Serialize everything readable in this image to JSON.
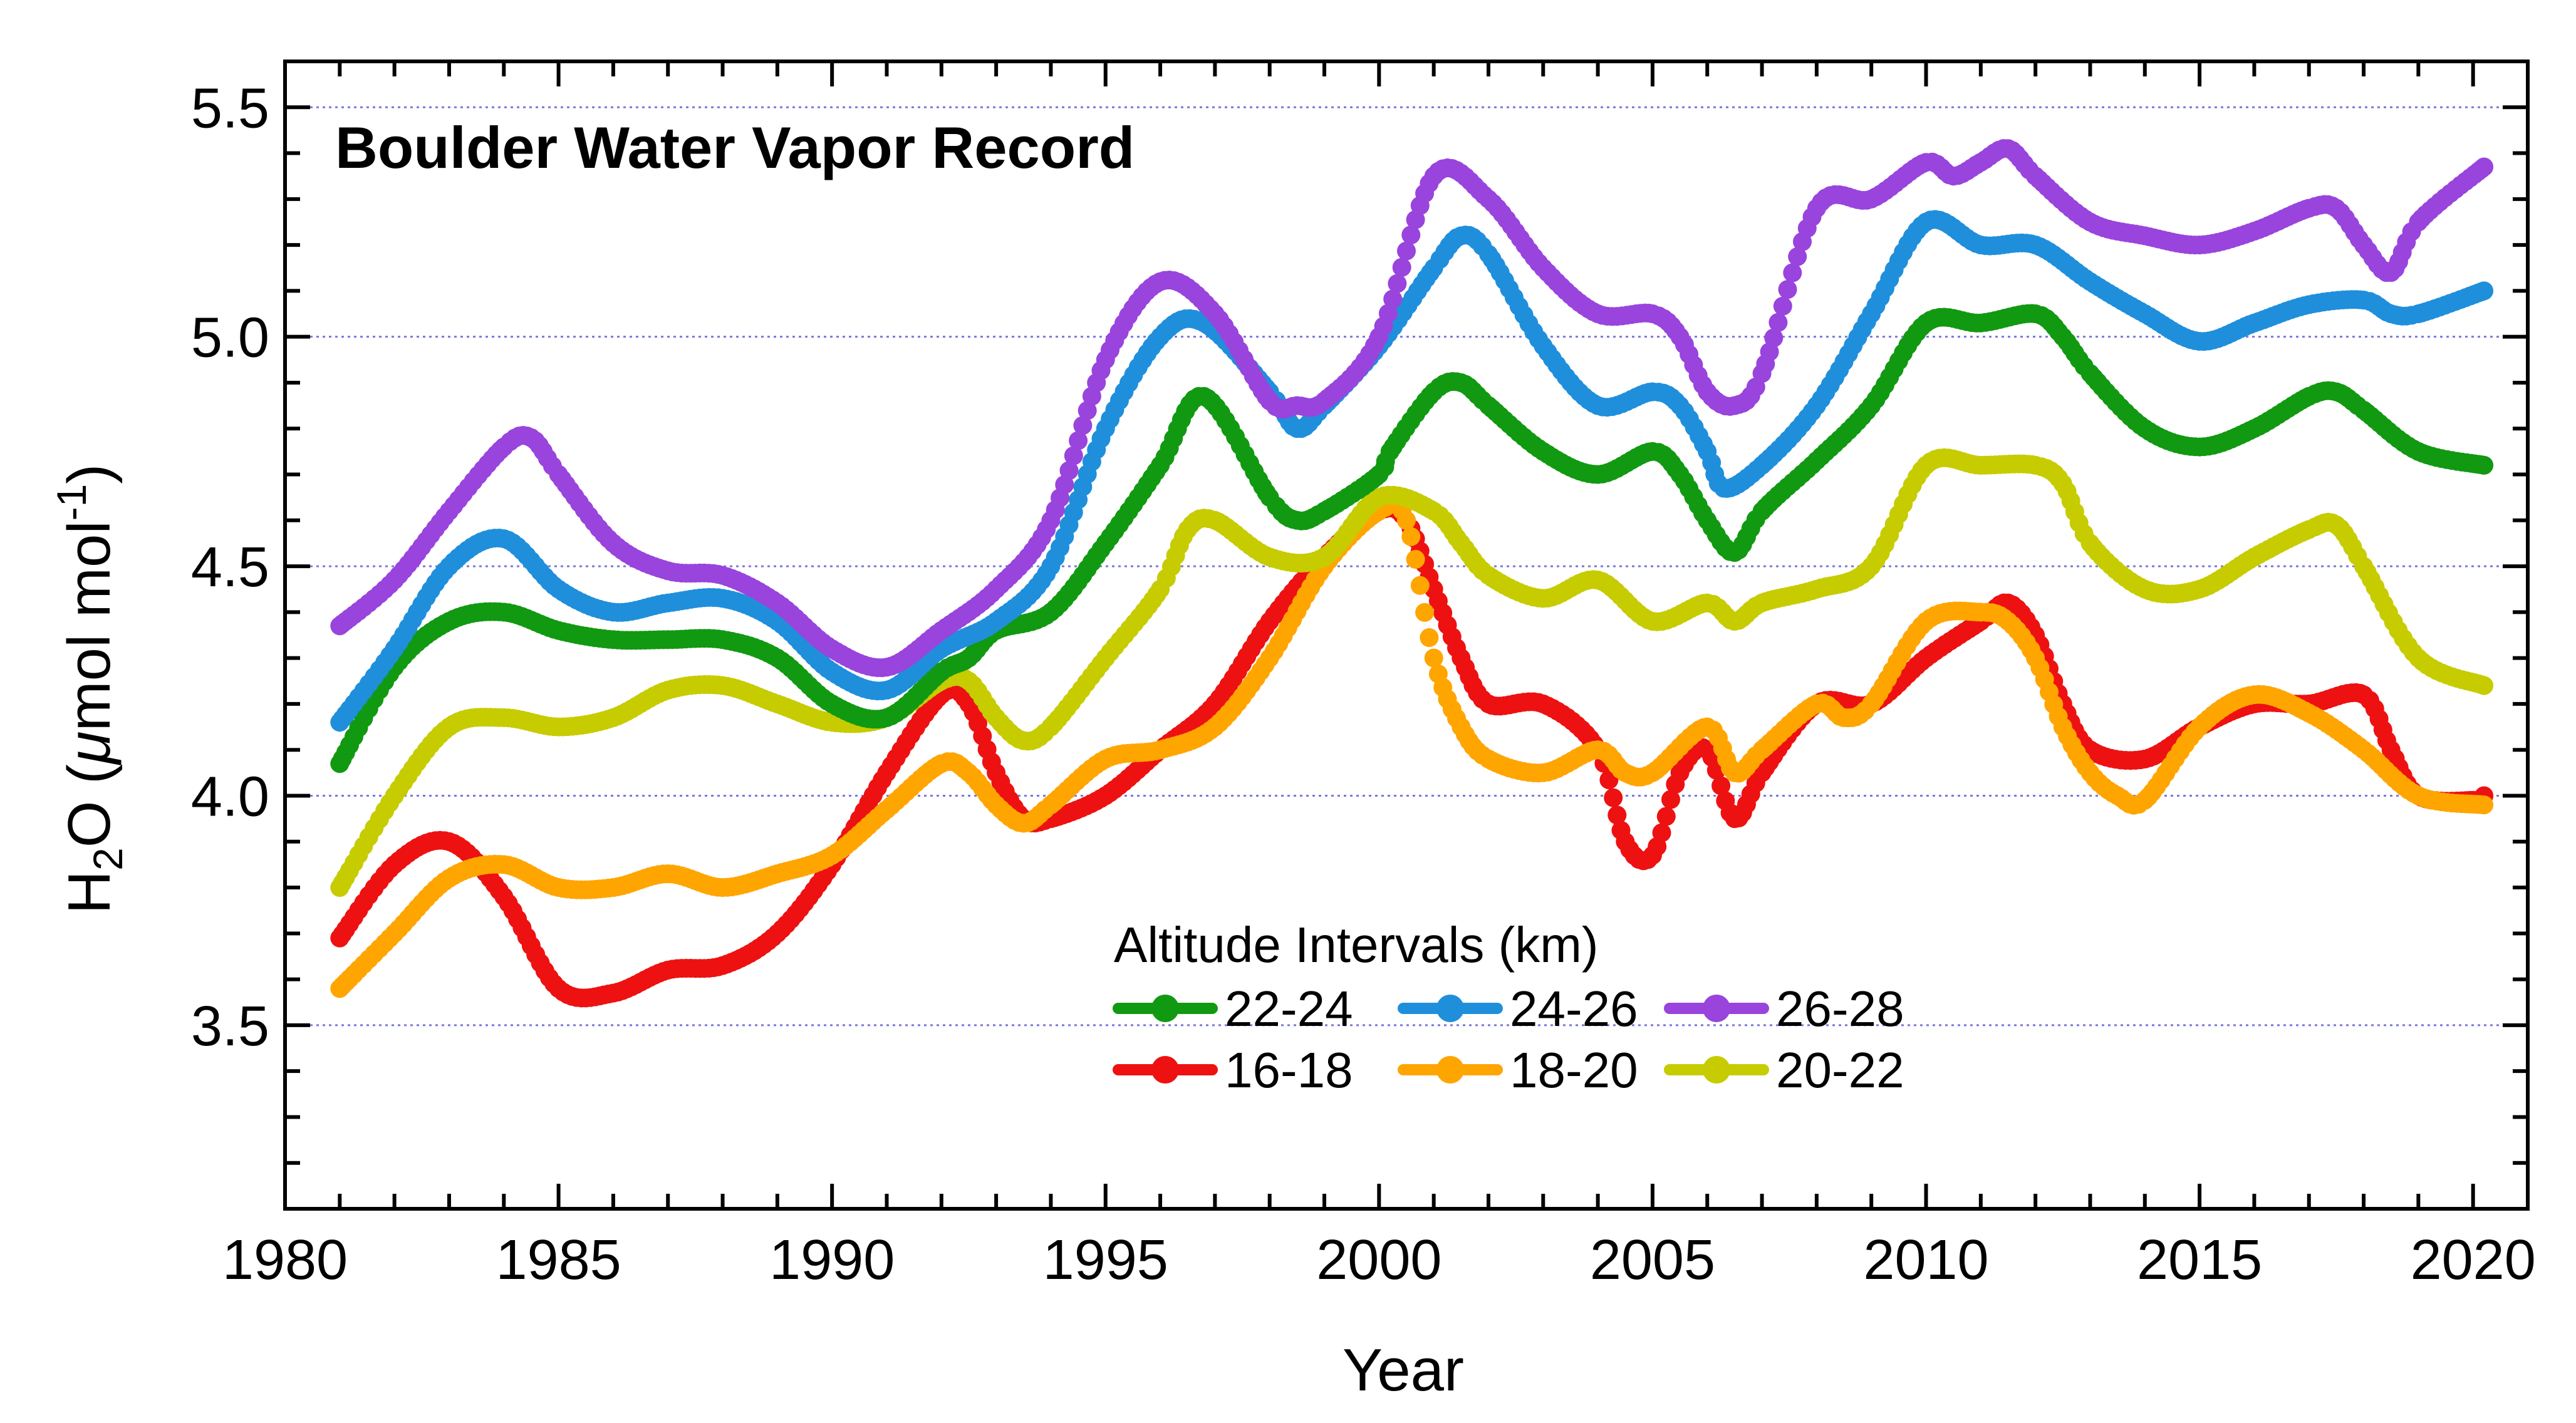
{
  "chart_data": {
    "type": "scatter",
    "title": "Boulder Water Vapor Record",
    "xlabel": "Year",
    "ylabel": {
      "prefix": "H",
      "sub": "2",
      "mid": "O (",
      "mu": "μ",
      "unit": "mol mol",
      "sup": "-1",
      "close": ")"
    },
    "xlim": [
      1980,
      2021
    ],
    "ylim": [
      3.1,
      5.6
    ],
    "xticks": [
      1980,
      1985,
      1990,
      1995,
      2000,
      2005,
      2010,
      2015,
      2020
    ],
    "xtick_labels": [
      "1980",
      "1985",
      "1990",
      "1995",
      "2000",
      "2005",
      "2010",
      "2015",
      "2020"
    ],
    "yticks": [
      3.5,
      4.0,
      4.5,
      5.0,
      5.5
    ],
    "ytick_labels": [
      "3.5",
      "4.0",
      "4.5",
      "5.0",
      "5.5"
    ],
    "gridlines_y": [
      3.5,
      4.0,
      4.5,
      5.0,
      5.5
    ],
    "legend": {
      "title": "Altitude Intervals (km)",
      "position": "bottom-center",
      "order": [
        "22-24",
        "24-26",
        "26-28",
        "16-18",
        "18-20",
        "20-22"
      ]
    },
    "series": [
      {
        "name": "16-18",
        "color": "#ee1111",
        "points": [
          [
            1981,
            3.69
          ],
          [
            1982,
            3.85
          ],
          [
            1983,
            3.9
          ],
          [
            1984,
            3.78
          ],
          [
            1985,
            3.58
          ],
          [
            1986,
            3.57
          ],
          [
            1987,
            3.62
          ],
          [
            1988,
            3.63
          ],
          [
            1989,
            3.7
          ],
          [
            1990,
            3.85
          ],
          [
            1991,
            4.05
          ],
          [
            1992,
            4.22
          ],
          [
            1992.5,
            4.2
          ],
          [
            1993,
            4.05
          ],
          [
            1993.5,
            3.95
          ],
          [
            1994,
            3.95
          ],
          [
            1995,
            4.0
          ],
          [
            1996,
            4.1
          ],
          [
            1997,
            4.2
          ],
          [
            1998,
            4.38
          ],
          [
            1999,
            4.52
          ],
          [
            2000,
            4.62
          ],
          [
            2000.5,
            4.6
          ],
          [
            2001,
            4.45
          ],
          [
            2001.5,
            4.3
          ],
          [
            2002,
            4.2
          ],
          [
            2003,
            4.2
          ],
          [
            2004,
            4.1
          ],
          [
            2004.5,
            3.9
          ],
          [
            2005,
            3.87
          ],
          [
            2005.5,
            4.05
          ],
          [
            2006,
            4.1
          ],
          [
            2006.5,
            3.95
          ],
          [
            2007,
            4.05
          ],
          [
            2008,
            4.2
          ],
          [
            2009,
            4.2
          ],
          [
            2010,
            4.3
          ],
          [
            2011,
            4.38
          ],
          [
            2011.5,
            4.42
          ],
          [
            2012,
            4.35
          ],
          [
            2012.5,
            4.2
          ],
          [
            2013,
            4.1
          ],
          [
            2014,
            4.08
          ],
          [
            2015,
            4.15
          ],
          [
            2016,
            4.2
          ],
          [
            2017,
            4.2
          ],
          [
            2018,
            4.22
          ],
          [
            2018.5,
            4.1
          ],
          [
            2019,
            4.0
          ],
          [
            2020,
            3.99
          ],
          [
            2020.2,
            4.0
          ]
        ]
      },
      {
        "name": "18-20",
        "color": "#ffa500",
        "points": [
          [
            1981,
            3.58
          ],
          [
            1982,
            3.7
          ],
          [
            1983,
            3.82
          ],
          [
            1984,
            3.85
          ],
          [
            1985,
            3.8
          ],
          [
            1986,
            3.8
          ],
          [
            1987,
            3.83
          ],
          [
            1988,
            3.8
          ],
          [
            1989,
            3.83
          ],
          [
            1990,
            3.87
          ],
          [
            1991,
            3.97
          ],
          [
            1992,
            4.07
          ],
          [
            1992.5,
            4.05
          ],
          [
            1993,
            3.98
          ],
          [
            1993.5,
            3.94
          ],
          [
            1994,
            3.98
          ],
          [
            1995,
            4.08
          ],
          [
            1996,
            4.1
          ],
          [
            1997,
            4.15
          ],
          [
            1998,
            4.3
          ],
          [
            1999,
            4.5
          ],
          [
            2000,
            4.62
          ],
          [
            2000.5,
            4.6
          ],
          [
            2001,
            4.3
          ],
          [
            2001.5,
            4.15
          ],
          [
            2002,
            4.08
          ],
          [
            2003,
            4.05
          ],
          [
            2004,
            4.1
          ],
          [
            2004.5,
            4.05
          ],
          [
            2005,
            4.05
          ],
          [
            2006,
            4.15
          ],
          [
            2006.5,
            4.05
          ],
          [
            2007,
            4.1
          ],
          [
            2008,
            4.2
          ],
          [
            2008.5,
            4.17
          ],
          [
            2009,
            4.2
          ],
          [
            2010,
            4.38
          ],
          [
            2011,
            4.4
          ],
          [
            2011.5,
            4.38
          ],
          [
            2012,
            4.3
          ],
          [
            2012.5,
            4.15
          ],
          [
            2013,
            4.05
          ],
          [
            2013.5,
            4.0
          ],
          [
            2014,
            3.99
          ],
          [
            2015,
            4.15
          ],
          [
            2016,
            4.22
          ],
          [
            2017,
            4.18
          ],
          [
            2018,
            4.1
          ],
          [
            2019,
            4.0
          ],
          [
            2020.2,
            3.98
          ]
        ]
      },
      {
        "name": "20-22",
        "color": "#c6cc00",
        "points": [
          [
            1981,
            3.8
          ],
          [
            1982,
            4.0
          ],
          [
            1983,
            4.15
          ],
          [
            1984,
            4.17
          ],
          [
            1985,
            4.15
          ],
          [
            1986,
            4.17
          ],
          [
            1987,
            4.23
          ],
          [
            1988,
            4.24
          ],
          [
            1989,
            4.2
          ],
          [
            1990,
            4.16
          ],
          [
            1991,
            4.17
          ],
          [
            1992,
            4.25
          ],
          [
            1992.5,
            4.25
          ],
          [
            1993,
            4.17
          ],
          [
            1993.5,
            4.12
          ],
          [
            1994,
            4.15
          ],
          [
            1995,
            4.3
          ],
          [
            1996,
            4.45
          ],
          [
            1996.5,
            4.58
          ],
          [
            1997,
            4.6
          ],
          [
            1998,
            4.52
          ],
          [
            1999,
            4.52
          ],
          [
            2000,
            4.65
          ],
          [
            2001,
            4.62
          ],
          [
            2001.5,
            4.55
          ],
          [
            2002,
            4.48
          ],
          [
            2003,
            4.43
          ],
          [
            2004,
            4.47
          ],
          [
            2005,
            4.38
          ],
          [
            2006,
            4.42
          ],
          [
            2006.5,
            4.38
          ],
          [
            2007,
            4.42
          ],
          [
            2008,
            4.45
          ],
          [
            2009,
            4.5
          ],
          [
            2010,
            4.72
          ],
          [
            2011,
            4.72
          ],
          [
            2012,
            4.72
          ],
          [
            2012.5,
            4.68
          ],
          [
            2013,
            4.55
          ],
          [
            2014,
            4.45
          ],
          [
            2015,
            4.45
          ],
          [
            2016,
            4.52
          ],
          [
            2017,
            4.58
          ],
          [
            2017.5,
            4.59
          ],
          [
            2018,
            4.5
          ],
          [
            2019,
            4.3
          ],
          [
            2020.2,
            4.24
          ]
        ]
      },
      {
        "name": "22-24",
        "color": "#119911",
        "points": [
          [
            1981,
            4.07
          ],
          [
            1982,
            4.28
          ],
          [
            1983,
            4.38
          ],
          [
            1984,
            4.4
          ],
          [
            1985,
            4.36
          ],
          [
            1986,
            4.34
          ],
          [
            1987,
            4.34
          ],
          [
            1988,
            4.34
          ],
          [
            1989,
            4.3
          ],
          [
            1990,
            4.2
          ],
          [
            1991,
            4.17
          ],
          [
            1992,
            4.27
          ],
          [
            1992.5,
            4.3
          ],
          [
            1993,
            4.36
          ],
          [
            1994,
            4.4
          ],
          [
            1995,
            4.55
          ],
          [
            1996,
            4.72
          ],
          [
            1996.8,
            4.87
          ],
          [
            1998,
            4.65
          ],
          [
            1998.5,
            4.6
          ],
          [
            1999,
            4.62
          ],
          [
            2000,
            4.7
          ],
          [
            2000.2,
            4.75
          ],
          [
            2001,
            4.88
          ],
          [
            2001.5,
            4.9
          ],
          [
            2002,
            4.85
          ],
          [
            2003,
            4.75
          ],
          [
            2004,
            4.7
          ],
          [
            2005,
            4.75
          ],
          [
            2005.5,
            4.7
          ],
          [
            2006,
            4.6
          ],
          [
            2006.5,
            4.53
          ],
          [
            2007,
            4.62
          ],
          [
            2008,
            4.73
          ],
          [
            2009,
            4.85
          ],
          [
            2010,
            5.03
          ],
          [
            2011,
            5.03
          ],
          [
            2012,
            5.05
          ],
          [
            2012.5,
            5.0
          ],
          [
            2013,
            4.92
          ],
          [
            2014,
            4.8
          ],
          [
            2015,
            4.76
          ],
          [
            2016,
            4.8
          ],
          [
            2017,
            4.87
          ],
          [
            2017.5,
            4.88
          ],
          [
            2018,
            4.84
          ],
          [
            2019,
            4.75
          ],
          [
            2020.2,
            4.72
          ]
        ]
      },
      {
        "name": "24-26",
        "color": "#1f8fdc",
        "points": [
          [
            1981,
            4.16
          ],
          [
            1982,
            4.32
          ],
          [
            1983,
            4.5
          ],
          [
            1984,
            4.56
          ],
          [
            1985,
            4.45
          ],
          [
            1986,
            4.4
          ],
          [
            1987,
            4.42
          ],
          [
            1988,
            4.43
          ],
          [
            1989,
            4.38
          ],
          [
            1990,
            4.27
          ],
          [
            1991,
            4.23
          ],
          [
            1992,
            4.32
          ],
          [
            1993,
            4.38
          ],
          [
            1994,
            4.5
          ],
          [
            1995,
            4.8
          ],
          [
            1996,
            5.0
          ],
          [
            1996.8,
            5.03
          ],
          [
            1998,
            4.88
          ],
          [
            1998.5,
            4.8
          ],
          [
            1999,
            4.85
          ],
          [
            2000,
            4.98
          ],
          [
            2001,
            5.15
          ],
          [
            2001.5,
            5.22
          ],
          [
            2002,
            5.18
          ],
          [
            2003,
            4.98
          ],
          [
            2004,
            4.85
          ],
          [
            2005,
            4.88
          ],
          [
            2005.5,
            4.85
          ],
          [
            2006,
            4.75
          ],
          [
            2006.3,
            4.67
          ],
          [
            2007,
            4.72
          ],
          [
            2008,
            4.85
          ],
          [
            2009,
            5.05
          ],
          [
            2010,
            5.25
          ],
          [
            2011,
            5.2
          ],
          [
            2012,
            5.2
          ],
          [
            2013,
            5.12
          ],
          [
            2014,
            5.05
          ],
          [
            2015,
            4.99
          ],
          [
            2016,
            5.03
          ],
          [
            2017,
            5.07
          ],
          [
            2018,
            5.08
          ],
          [
            2018.5,
            5.05
          ],
          [
            2019,
            5.05
          ],
          [
            2020.2,
            5.1
          ]
        ]
      },
      {
        "name": "26-28",
        "color": "#9944dd",
        "points": [
          [
            1981,
            4.37
          ],
          [
            1982,
            4.47
          ],
          [
            1983,
            4.62
          ],
          [
            1984,
            4.76
          ],
          [
            1984.5,
            4.78
          ],
          [
            1985,
            4.7
          ],
          [
            1986,
            4.55
          ],
          [
            1987,
            4.49
          ],
          [
            1988,
            4.48
          ],
          [
            1989,
            4.42
          ],
          [
            1990,
            4.32
          ],
          [
            1991,
            4.28
          ],
          [
            1992,
            4.36
          ],
          [
            1993,
            4.45
          ],
          [
            1994,
            4.6
          ],
          [
            1995,
            4.95
          ],
          [
            1996,
            5.12
          ],
          [
            1997,
            5.05
          ],
          [
            1998,
            4.86
          ],
          [
            1998.5,
            4.85
          ],
          [
            1999,
            4.86
          ],
          [
            2000,
            5.0
          ],
          [
            2001,
            5.35
          ],
          [
            2002,
            5.3
          ],
          [
            2003,
            5.15
          ],
          [
            2004,
            5.05
          ],
          [
            2005,
            5.05
          ],
          [
            2005.5,
            5.0
          ],
          [
            2006,
            4.88
          ],
          [
            2006.5,
            4.85
          ],
          [
            2007,
            4.92
          ],
          [
            2008,
            5.28
          ],
          [
            2009,
            5.3
          ],
          [
            2010,
            5.38
          ],
          [
            2010.5,
            5.35
          ],
          [
            2011,
            5.38
          ],
          [
            2011.5,
            5.41
          ],
          [
            2012,
            5.35
          ],
          [
            2013,
            5.25
          ],
          [
            2014,
            5.22
          ],
          [
            2015,
            5.2
          ],
          [
            2016,
            5.23
          ],
          [
            2017,
            5.28
          ],
          [
            2017.5,
            5.28
          ],
          [
            2018,
            5.2
          ],
          [
            2018.5,
            5.14
          ],
          [
            2019,
            5.25
          ],
          [
            2020.2,
            5.37
          ]
        ]
      }
    ]
  }
}
